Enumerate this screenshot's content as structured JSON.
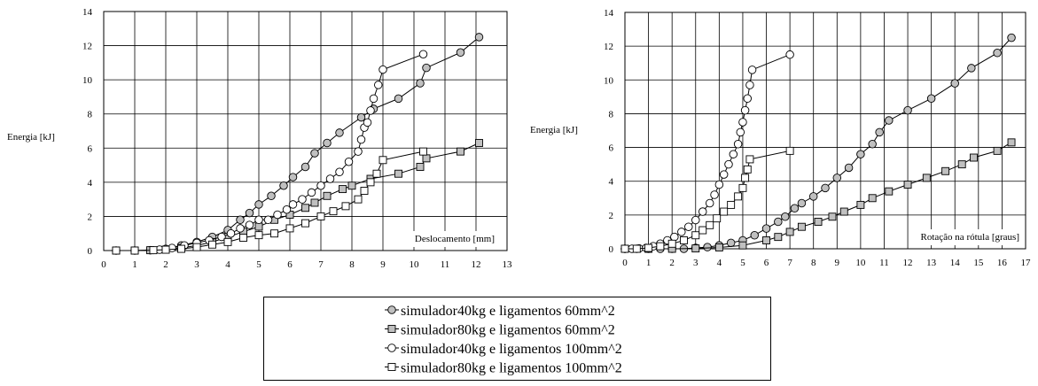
{
  "chart_data": [
    {
      "type": "line",
      "title": "",
      "ylabel": "Energia [kJ]",
      "xlabel": "Deslocamento [mm]",
      "xlim": [
        0,
        13
      ],
      "ylim": [
        0,
        14
      ],
      "xticks": [
        "0",
        "1",
        "2",
        "3",
        "4",
        "5",
        "6",
        "7",
        "8",
        "9",
        "10",
        "11",
        "12",
        "13"
      ],
      "yticks": [
        "0",
        "2",
        "4",
        "6",
        "8",
        "10",
        "12",
        "14"
      ],
      "grid": true,
      "series": [
        {
          "name": "simulador40kg e ligamentos 60mm^2",
          "marker": "circle-gray",
          "points": [
            [
              0.4,
              0
            ],
            [
              1.0,
              0
            ],
            [
              1.5,
              0.02
            ],
            [
              2.0,
              0.1
            ],
            [
              2.5,
              0.3
            ],
            [
              3.0,
              0.5
            ],
            [
              3.5,
              0.8
            ],
            [
              4.0,
              1.2
            ],
            [
              4.4,
              1.8
            ],
            [
              4.7,
              2.2
            ],
            [
              5.0,
              2.7
            ],
            [
              5.4,
              3.2
            ],
            [
              5.8,
              3.8
            ],
            [
              6.1,
              4.3
            ],
            [
              6.5,
              4.9
            ],
            [
              6.8,
              5.7
            ],
            [
              7.2,
              6.3
            ],
            [
              7.6,
              6.9
            ],
            [
              8.3,
              7.8
            ],
            [
              8.7,
              8.3
            ],
            [
              9.5,
              8.9
            ],
            [
              10.2,
              9.8
            ],
            [
              10.4,
              10.7
            ],
            [
              11.5,
              11.6
            ],
            [
              12.1,
              12.5
            ]
          ]
        },
        {
          "name": "simulador80kg e ligamentos 60mm^2",
          "marker": "square-gray",
          "points": [
            [
              0.4,
              0
            ],
            [
              1.0,
              0
            ],
            [
              1.5,
              0.02
            ],
            [
              2.0,
              0.05
            ],
            [
              2.5,
              0.15
            ],
            [
              3.0,
              0.3
            ],
            [
              3.5,
              0.5
            ],
            [
              4.0,
              0.8
            ],
            [
              4.5,
              1.1
            ],
            [
              5.0,
              1.4
            ],
            [
              5.5,
              1.8
            ],
            [
              6.0,
              2.1
            ],
            [
              6.5,
              2.5
            ],
            [
              6.8,
              2.8
            ],
            [
              7.2,
              3.2
            ],
            [
              7.7,
              3.6
            ],
            [
              8.0,
              3.8
            ],
            [
              8.6,
              4.2
            ],
            [
              9.5,
              4.5
            ],
            [
              10.2,
              4.9
            ],
            [
              10.4,
              5.4
            ],
            [
              11.5,
              5.8
            ],
            [
              12.1,
              6.3
            ]
          ]
        },
        {
          "name": "simulador40kg e ligamentos 100mm^2",
          "marker": "circle-white",
          "points": [
            [
              1.8,
              0.05
            ],
            [
              2.2,
              0.15
            ],
            [
              2.6,
              0.3
            ],
            [
              3.0,
              0.45
            ],
            [
              3.4,
              0.6
            ],
            [
              3.8,
              0.8
            ],
            [
              4.1,
              1.0
            ],
            [
              4.4,
              1.3
            ],
            [
              4.7,
              1.5
            ],
            [
              5.0,
              1.8
            ],
            [
              5.3,
              1.8
            ],
            [
              5.6,
              2.1
            ],
            [
              5.9,
              2.4
            ],
            [
              6.1,
              2.7
            ],
            [
              6.4,
              3.0
            ],
            [
              6.7,
              3.4
            ],
            [
              7.0,
              3.8
            ],
            [
              7.3,
              4.2
            ],
            [
              7.6,
              4.6
            ],
            [
              7.9,
              5.2
            ],
            [
              8.2,
              5.8
            ],
            [
              8.3,
              6.5
            ],
            [
              8.4,
              7.2
            ],
            [
              8.5,
              7.5
            ],
            [
              8.6,
              8.2
            ],
            [
              8.7,
              8.9
            ],
            [
              8.85,
              9.7
            ],
            [
              9.0,
              10.6
            ],
            [
              10.3,
              11.5
            ]
          ]
        },
        {
          "name": "simulador80kg e ligamentos 100mm^2",
          "marker": "square-white",
          "points": [
            [
              0.4,
              0
            ],
            [
              1.0,
              0
            ],
            [
              1.6,
              0.02
            ],
            [
              2.0,
              0.05
            ],
            [
              2.5,
              0.1
            ],
            [
              3.0,
              0.2
            ],
            [
              3.5,
              0.35
            ],
            [
              4.0,
              0.5
            ],
            [
              4.5,
              0.75
            ],
            [
              5.0,
              0.9
            ],
            [
              5.5,
              1.0
            ],
            [
              6.0,
              1.3
            ],
            [
              6.5,
              1.6
            ],
            [
              7.0,
              2.0
            ],
            [
              7.4,
              2.3
            ],
            [
              7.8,
              2.6
            ],
            [
              8.2,
              3.0
            ],
            [
              8.4,
              3.5
            ],
            [
              8.6,
              4.0
            ],
            [
              8.8,
              4.5
            ],
            [
              9.0,
              5.3
            ],
            [
              10.3,
              5.8
            ]
          ]
        }
      ]
    },
    {
      "type": "line",
      "title": "",
      "ylabel": "Energia [kJ]",
      "xlabel": "Rotação na rótula [graus]",
      "xlim": [
        0,
        17
      ],
      "ylim": [
        0,
        14
      ],
      "xticks": [
        "0",
        "1",
        "2",
        "3",
        "4",
        "5",
        "6",
        "7",
        "8",
        "9",
        "10",
        "11",
        "12",
        "13",
        "14",
        "15",
        "16",
        "17"
      ],
      "yticks": [
        "0",
        "2",
        "4",
        "6",
        "8",
        "10",
        "12",
        "14"
      ],
      "grid": true,
      "series": [
        {
          "name": "simulador40kg e ligamentos 60mm^2",
          "marker": "circle-gray",
          "points": [
            [
              0.0,
              0
            ],
            [
              0.5,
              0
            ],
            [
              1.0,
              0
            ],
            [
              1.5,
              0
            ],
            [
              2.0,
              0
            ],
            [
              2.5,
              0
            ],
            [
              3.0,
              0.05
            ],
            [
              3.5,
              0.1
            ],
            [
              4.0,
              0.2
            ],
            [
              4.5,
              0.35
            ],
            [
              5.0,
              0.5
            ],
            [
              5.5,
              0.8
            ],
            [
              6.0,
              1.2
            ],
            [
              6.5,
              1.6
            ],
            [
              6.8,
              1.9
            ],
            [
              7.2,
              2.4
            ],
            [
              7.5,
              2.7
            ],
            [
              8.0,
              3.1
            ],
            [
              8.5,
              3.6
            ],
            [
              9.0,
              4.2
            ],
            [
              9.5,
              4.8
            ],
            [
              10.0,
              5.6
            ],
            [
              10.5,
              6.2
            ],
            [
              10.8,
              6.9
            ],
            [
              11.2,
              7.6
            ],
            [
              12.0,
              8.2
            ],
            [
              13.0,
              8.9
            ],
            [
              14.0,
              9.8
            ],
            [
              14.7,
              10.7
            ],
            [
              15.8,
              11.6
            ],
            [
              16.4,
              12.5
            ]
          ]
        },
        {
          "name": "simulador80kg e ligamentos 60mm^2",
          "marker": "square-gray",
          "points": [
            [
              0.0,
              0
            ],
            [
              0.5,
              0
            ],
            [
              1.0,
              0
            ],
            [
              2.0,
              0
            ],
            [
              3.0,
              0.02
            ],
            [
              4.0,
              0.08
            ],
            [
              5.0,
              0.2
            ],
            [
              6.0,
              0.5
            ],
            [
              6.5,
              0.7
            ],
            [
              7.0,
              1.0
            ],
            [
              7.5,
              1.3
            ],
            [
              8.2,
              1.6
            ],
            [
              8.8,
              1.9
            ],
            [
              9.3,
              2.2
            ],
            [
              10.0,
              2.6
            ],
            [
              10.5,
              3.0
            ],
            [
              11.2,
              3.4
            ],
            [
              12.0,
              3.8
            ],
            [
              12.8,
              4.2
            ],
            [
              13.6,
              4.6
            ],
            [
              14.3,
              5.0
            ],
            [
              14.8,
              5.4
            ],
            [
              15.8,
              5.8
            ],
            [
              16.4,
              6.3
            ]
          ]
        },
        {
          "name": "simulador40kg e ligamentos 100mm^2",
          "marker": "circle-white",
          "points": [
            [
              0.0,
              0
            ],
            [
              0.3,
              0
            ],
            [
              0.6,
              0.02
            ],
            [
              0.9,
              0.05
            ],
            [
              1.2,
              0.15
            ],
            [
              1.5,
              0.3
            ],
            [
              1.8,
              0.5
            ],
            [
              2.1,
              0.7
            ],
            [
              2.4,
              1.0
            ],
            [
              2.7,
              1.3
            ],
            [
              3.0,
              1.7
            ],
            [
              3.3,
              2.2
            ],
            [
              3.6,
              2.7
            ],
            [
              3.8,
              3.2
            ],
            [
              4.0,
              3.8
            ],
            [
              4.2,
              4.4
            ],
            [
              4.4,
              5.0
            ],
            [
              4.6,
              5.6
            ],
            [
              4.8,
              6.2
            ],
            [
              4.9,
              6.9
            ],
            [
              5.0,
              7.5
            ],
            [
              5.1,
              8.2
            ],
            [
              5.2,
              8.9
            ],
            [
              5.3,
              9.7
            ],
            [
              5.4,
              10.6
            ],
            [
              7.0,
              11.5
            ]
          ]
        },
        {
          "name": "simulador80kg e ligamentos 100mm^2",
          "marker": "square-white",
          "points": [
            [
              0.0,
              0
            ],
            [
              0.5,
              0
            ],
            [
              1.0,
              0.05
            ],
            [
              1.5,
              0.15
            ],
            [
              2.0,
              0.3
            ],
            [
              2.5,
              0.5
            ],
            [
              3.0,
              0.8
            ],
            [
              3.3,
              1.1
            ],
            [
              3.6,
              1.4
            ],
            [
              3.9,
              1.8
            ],
            [
              4.2,
              2.2
            ],
            [
              4.5,
              2.6
            ],
            [
              4.8,
              3.1
            ],
            [
              5.0,
              3.6
            ],
            [
              5.1,
              4.2
            ],
            [
              5.2,
              4.7
            ],
            [
              5.3,
              5.3
            ],
            [
              7.0,
              5.8
            ]
          ]
        }
      ]
    }
  ],
  "legend": {
    "items": [
      {
        "label": "simulador40kg e ligamentos 60mm^2",
        "marker": "circle-gray"
      },
      {
        "label": "simulador80kg e ligamentos 60mm^2",
        "marker": "square-gray"
      },
      {
        "label": "simulador40kg e ligamentos 100mm^2",
        "marker": "circle-white"
      },
      {
        "label": "simulador80kg e ligamentos 100mm^2",
        "marker": "square-white"
      }
    ]
  },
  "colors": {
    "gray_fill": "#c0c0c0",
    "white_fill": "#ffffff",
    "line": "#000000",
    "grid": "#000000"
  }
}
